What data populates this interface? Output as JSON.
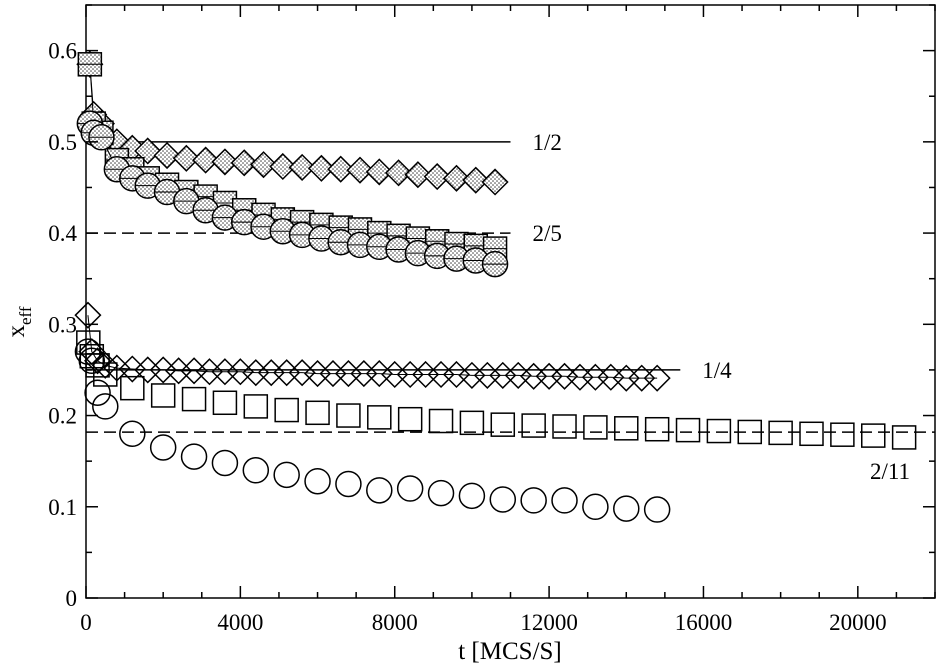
{
  "chart_data": {
    "type": "scatter",
    "title": "",
    "xlabel": "t [MCS/S]",
    "ylabel_main": "x",
    "ylabel_sub": "eff",
    "xlim": [
      0,
      22000
    ],
    "ylim": [
      0,
      0.65
    ],
    "xticks": [
      0,
      4000,
      8000,
      12000,
      16000,
      20000
    ],
    "yticks": [
      0,
      0.1,
      0.2,
      0.3,
      0.4,
      0.5,
      0.6
    ],
    "xtick_labels": [
      "0",
      "4000",
      "8000",
      "12000",
      "16000",
      "20000"
    ],
    "ytick_labels": [
      "0",
      "0.1",
      "0.2",
      "0.3",
      "0.4",
      "0.5",
      "0.6"
    ],
    "grid": false,
    "reference_lines": [
      {
        "y": 0.5,
        "x_end": 11000,
        "style": "solid",
        "label": "1/2"
      },
      {
        "y": 0.4,
        "x_end": 11000,
        "style": "dashed",
        "label": "2/5"
      },
      {
        "y": 0.25,
        "x_end": 15400,
        "style": "solid",
        "label": "1/4"
      },
      {
        "y": 0.1818,
        "x_end": 22000,
        "style": "dashed",
        "label": "2/11"
      }
    ],
    "series": [
      {
        "marker": "diamond",
        "fill": "dotted",
        "connected": true,
        "x": [
          100,
          200,
          400,
          800,
          1200,
          1600,
          2100,
          2600,
          3100,
          3600,
          4100,
          4600,
          5100,
          5600,
          6100,
          6600,
          7100,
          7600,
          8100,
          8600,
          9100,
          9600,
          10100,
          10600
        ],
        "y": [
          0.585,
          0.53,
          0.52,
          0.5,
          0.493,
          0.49,
          0.485,
          0.482,
          0.48,
          0.478,
          0.477,
          0.475,
          0.473,
          0.472,
          0.471,
          0.47,
          0.469,
          0.467,
          0.466,
          0.464,
          0.462,
          0.46,
          0.458,
          0.456
        ]
      },
      {
        "marker": "square",
        "fill": "dotted-half",
        "connected": true,
        "x": [
          100,
          200,
          400,
          800,
          1200,
          1600,
          2100,
          2600,
          3100,
          3600,
          4100,
          4600,
          5100,
          5600,
          6100,
          6600,
          7100,
          7600,
          8100,
          8600,
          9100,
          9600,
          10100,
          10600
        ],
        "y": [
          0.585,
          0.52,
          0.51,
          0.48,
          0.47,
          0.46,
          0.453,
          0.445,
          0.44,
          0.433,
          0.425,
          0.42,
          0.415,
          0.412,
          0.409,
          0.406,
          0.404,
          0.4,
          0.397,
          0.394,
          0.391,
          0.388,
          0.386,
          0.383
        ]
      },
      {
        "marker": "circle",
        "fill": "dotted-half",
        "connected": true,
        "x": [
          100,
          200,
          400,
          800,
          1200,
          1600,
          2100,
          2600,
          3100,
          3600,
          4100,
          4600,
          5100,
          5600,
          6100,
          6600,
          7100,
          7600,
          8100,
          8600,
          9100,
          9600,
          10100,
          10600
        ],
        "y": [
          0.52,
          0.51,
          0.505,
          0.47,
          0.46,
          0.452,
          0.445,
          0.435,
          0.425,
          0.417,
          0.412,
          0.407,
          0.402,
          0.398,
          0.394,
          0.39,
          0.387,
          0.385,
          0.382,
          0.378,
          0.375,
          0.372,
          0.37,
          0.366
        ]
      },
      {
        "marker": "diamond",
        "fill": "none",
        "connected": true,
        "x": [
          50,
          150,
          300,
          500,
          800,
          1200,
          1600,
          2000,
          2400,
          2800,
          3200,
          3600,
          4000,
          4400,
          4800,
          5200,
          5600,
          6000,
          6400,
          6800,
          7200,
          7600,
          8000,
          8400,
          8800,
          9200,
          9600,
          10000,
          10400,
          10800,
          11200,
          11600,
          12000,
          12400,
          12800,
          13200,
          13600,
          14000,
          14400,
          14800
        ],
        "y": [
          0.31,
          0.27,
          0.26,
          0.255,
          0.252,
          0.251,
          0.25,
          0.25,
          0.249,
          0.249,
          0.248,
          0.248,
          0.248,
          0.247,
          0.247,
          0.247,
          0.247,
          0.246,
          0.246,
          0.246,
          0.246,
          0.246,
          0.245,
          0.245,
          0.245,
          0.245,
          0.245,
          0.244,
          0.244,
          0.244,
          0.244,
          0.243,
          0.243,
          0.243,
          0.242,
          0.242,
          0.242,
          0.241,
          0.241,
          0.241
        ]
      },
      {
        "marker": "square",
        "fill": "none",
        "connected": false,
        "x": [
          60,
          150,
          300,
          500,
          1200,
          2000,
          2800,
          3600,
          4400,
          5200,
          6000,
          6800,
          7600,
          8400,
          9200,
          10000,
          10800,
          11600,
          12400,
          13200,
          14000,
          14800,
          15600,
          16400,
          17200,
          18000,
          18800,
          19600,
          20400,
          21200
        ],
        "y": [
          0.28,
          0.265,
          0.255,
          0.245,
          0.23,
          0.222,
          0.218,
          0.214,
          0.21,
          0.206,
          0.203,
          0.2,
          0.198,
          0.196,
          0.194,
          0.192,
          0.19,
          0.189,
          0.188,
          0.187,
          0.186,
          0.185,
          0.184,
          0.183,
          0.182,
          0.181,
          0.18,
          0.179,
          0.178,
          0.176
        ]
      },
      {
        "marker": "circle",
        "fill": "none",
        "connected": false,
        "x": [
          50,
          150,
          300,
          500,
          1200,
          2000,
          2800,
          3600,
          4400,
          5200,
          6000,
          6800,
          7600,
          8400,
          9200,
          10000,
          10800,
          11600,
          12400,
          13200,
          14000,
          14800
        ],
        "y": [
          0.27,
          0.26,
          0.225,
          0.21,
          0.18,
          0.165,
          0.155,
          0.148,
          0.14,
          0.135,
          0.128,
          0.125,
          0.118,
          0.12,
          0.115,
          0.112,
          0.108,
          0.107,
          0.107,
          0.1,
          0.098,
          0.097
        ]
      }
    ]
  }
}
